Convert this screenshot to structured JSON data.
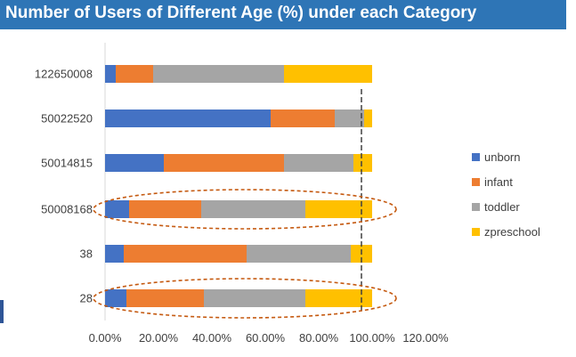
{
  "chart_data": {
    "type": "bar",
    "orientation": "horizontal",
    "stacked": true,
    "title": "Number of Users of Different Age (%) under  each Category",
    "xlabel": "",
    "ylabel": "",
    "xlim": [
      0,
      1.2
    ],
    "x_ticks": [
      "0.00%",
      "20.00%",
      "40.00%",
      "60.00%",
      "80.00%",
      "100.00%",
      "120.00%"
    ],
    "categories": [
      "122650008",
      "50022520",
      "50014815",
      "50008168",
      "38",
      "28"
    ],
    "series": [
      {
        "name": "unborn",
        "color": "#4472c4",
        "values": [
          0.04,
          0.62,
          0.22,
          0.09,
          0.07,
          0.08
        ]
      },
      {
        "name": "infant",
        "color": "#ed7d31",
        "values": [
          0.14,
          0.24,
          0.45,
          0.27,
          0.46,
          0.29
        ]
      },
      {
        "name": "toddler",
        "color": "#a5a5a5",
        "values": [
          0.49,
          0.11,
          0.26,
          0.39,
          0.39,
          0.38
        ]
      },
      {
        "name": "zpreschool",
        "color": "#ffc000",
        "values": [
          0.33,
          0.03,
          0.07,
          0.25,
          0.08,
          0.25
        ]
      }
    ],
    "legend_position": "right",
    "grid": false,
    "annotations": {
      "highlighted_categories": [
        "50008168",
        "28"
      ],
      "highlight_style": "dashed ellipse",
      "highlight_color": "#c55a11",
      "reference_line_x": 0.96
    }
  }
}
